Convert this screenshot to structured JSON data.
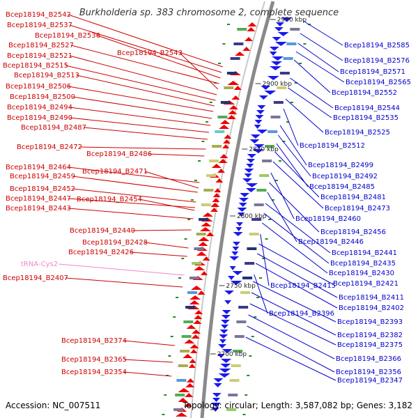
{
  "title": "Burkholderia sp. 383 chromosome 2, complete sequence",
  "accession": "Accession: NC_007511",
  "topology": "Topology: circular; Length: 3,587,082 bp; Genes: 3,182",
  "colors": {
    "left_gene": "#ee0000",
    "right_gene": "#1a1aee",
    "left_label": "#cc0000",
    "right_label": "#0000cc",
    "trna": "#ee88cc",
    "backbone": "#888888",
    "gc_dot": "#228b22"
  },
  "ticks": [
    {
      "label": "2950 kbp",
      "pos": 2950
    },
    {
      "label": "2900 kbp",
      "pos": 2900
    },
    {
      "label": "2850 kbp",
      "pos": 2850
    },
    {
      "label": "2800 kbp",
      "pos": 2800
    },
    {
      "label": "2750 kbp",
      "pos": 2750
    },
    {
      "label": "2700 kbp",
      "pos": 2700
    }
  ],
  "left_labels": [
    {
      "text": "Bcep18194_B2542"
    },
    {
      "text": "Bcep18194_B2537"
    },
    {
      "text": "Bcep18194_B2536"
    },
    {
      "text": "Bcep18194_B2527"
    },
    {
      "text": "Bcep18194_B2543"
    },
    {
      "text": "Bcep18194_B2521"
    },
    {
      "text": "Bcep18194_B2515"
    },
    {
      "text": "Bcep18194_B2513"
    },
    {
      "text": "Bcep18194_B2506"
    },
    {
      "text": "Bcep18194_B2500"
    },
    {
      "text": "Bcep18194_B2494"
    },
    {
      "text": "Bcep18194_B2490"
    },
    {
      "text": "Bcep18194_B2487"
    },
    {
      "text": "Bcep18194_B2472"
    },
    {
      "text": "Bcep18194_B2486"
    },
    {
      "text": "Bcep18194_B2464"
    },
    {
      "text": "Bcep18194_B2471"
    },
    {
      "text": "Bcep18194_B2459"
    },
    {
      "text": "Bcep18194_B2452"
    },
    {
      "text": "Bcep18194_B2447"
    },
    {
      "text": "Bcep18194_B2454"
    },
    {
      "text": "Bcep18194_B2443"
    },
    {
      "text": "Bcep18194_B2440"
    },
    {
      "text": "Bcep18194_B2428"
    },
    {
      "text": "Bcep18194_B2426"
    },
    {
      "text": "tRNA-Cys2"
    },
    {
      "text": "Bcep18194_B2407"
    },
    {
      "text": "Bcep18194_B2374"
    },
    {
      "text": "Bcep18194_B2365"
    },
    {
      "text": "Bcep18194_B2354"
    }
  ],
  "right_labels": [
    {
      "text": "Bcep18194_B2585"
    },
    {
      "text": "Bcep18194_B2576"
    },
    {
      "text": "Bcep18194_B2571"
    },
    {
      "text": "Bcep18194_B2565"
    },
    {
      "text": "Bcep18194_B2552"
    },
    {
      "text": "Bcep18194_B2544"
    },
    {
      "text": "Bcep18194_B2535"
    },
    {
      "text": "Bcep18194_B2525"
    },
    {
      "text": "Bcep18194_B2512"
    },
    {
      "text": "Bcep18194_B2499"
    },
    {
      "text": "Bcep18194_B2492"
    },
    {
      "text": "Bcep18194_B2485"
    },
    {
      "text": "Bcep18194_B2481"
    },
    {
      "text": "Bcep18194_B2473"
    },
    {
      "text": "Bcep18194_B2460"
    },
    {
      "text": "Bcep18194_B2456"
    },
    {
      "text": "Bcep18194_B2446"
    },
    {
      "text": "Bcep18194_B2441"
    },
    {
      "text": "Bcep18194_B2435"
    },
    {
      "text": "Bcep18194_B2430"
    },
    {
      "text": "Bcep18194_B2415"
    },
    {
      "text": "Bcep18194_B2421"
    },
    {
      "text": "Bcep18194_B2411"
    },
    {
      "text": "Bcep18194_B2402"
    },
    {
      "text": "Bcep18194_B2396"
    },
    {
      "text": "Bcep18194_B2393"
    },
    {
      "text": "Bcep18194_B2382"
    },
    {
      "text": "Bcep18194_B2375"
    },
    {
      "text": "Bcep18194_B2366"
    },
    {
      "text": "Bcep18194_B2356"
    },
    {
      "text": "Bcep18194_B2347"
    }
  ]
}
